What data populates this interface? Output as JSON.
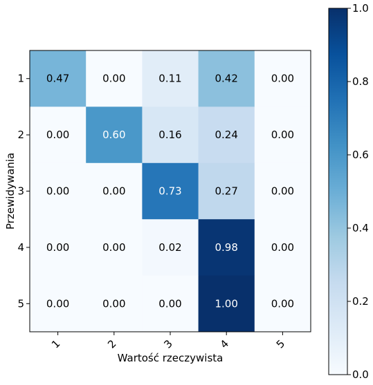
{
  "chart_data": {
    "type": "heatmap",
    "title": "",
    "xlabel": "Wartość rzeczywista",
    "ylabel": "Przewidywania",
    "x_categories": [
      "1",
      "2",
      "3",
      "4",
      "5"
    ],
    "y_categories": [
      "1",
      "2",
      "3",
      "4",
      "5"
    ],
    "values": [
      [
        0.47,
        0.0,
        0.11,
        0.42,
        0.0
      ],
      [
        0.0,
        0.6,
        0.16,
        0.24,
        0.0
      ],
      [
        0.0,
        0.0,
        0.73,
        0.27,
        0.0
      ],
      [
        0.0,
        0.0,
        0.02,
        0.98,
        0.0
      ],
      [
        0.0,
        0.0,
        0.0,
        1.0,
        0.0
      ]
    ],
    "cell_labels": [
      [
        "0.47",
        "0.00",
        "0.11",
        "0.42",
        "0.00"
      ],
      [
        "0.00",
        "0.60",
        "0.16",
        "0.24",
        "0.00"
      ],
      [
        "0.00",
        "0.00",
        "0.73",
        "0.27",
        "0.00"
      ],
      [
        "0.00",
        "0.00",
        "0.02",
        "0.98",
        "0.00"
      ],
      [
        "0.00",
        "0.00",
        "0.00",
        "1.00",
        "0.00"
      ]
    ],
    "colorscale": "Blues",
    "colorbar": {
      "range": [
        0.0,
        1.0
      ],
      "ticks": [
        "0.0",
        "0.2",
        "0.4",
        "0.6",
        "0.8",
        "1.0"
      ]
    },
    "x_tick_rotation": "45°",
    "grid": false
  }
}
